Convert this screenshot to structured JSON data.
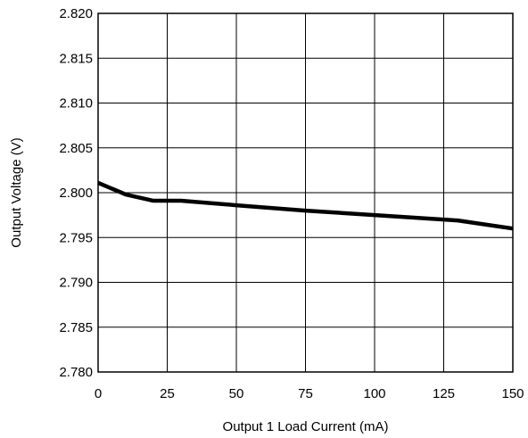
{
  "chart_data": {
    "type": "line",
    "title": "",
    "xlabel": "Output 1 Load Current (mA)",
    "ylabel": "Output Voltage (V)",
    "xlim": [
      0,
      150
    ],
    "ylim": [
      2.78,
      2.82
    ],
    "grid": true,
    "legend": "none",
    "x_ticks": [
      0,
      25,
      50,
      75,
      100,
      125,
      150
    ],
    "x_tick_labels": [
      "0",
      "25",
      "50",
      "75",
      "100",
      "125",
      "150"
    ],
    "y_ticks": [
      2.78,
      2.785,
      2.79,
      2.795,
      2.8,
      2.805,
      2.81,
      2.815,
      2.82
    ],
    "y_tick_labels": [
      "2.780",
      "2.785",
      "2.790",
      "2.795",
      "2.800",
      "2.805",
      "2.810",
      "2.815",
      "2.820"
    ],
    "series": [
      {
        "color": "#000000",
        "x": [
          0,
          10,
          20,
          30,
          50,
          75,
          100,
          130,
          150
        ],
        "y": [
          2.8011,
          2.7998,
          2.7991,
          2.7991,
          2.7986,
          2.798,
          2.7975,
          2.7969,
          2.796
        ]
      }
    ]
  }
}
